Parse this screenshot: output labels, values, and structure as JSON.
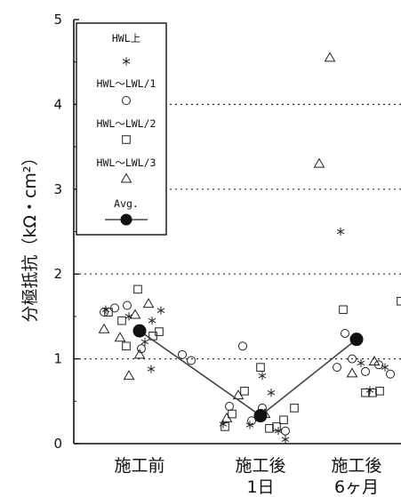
{
  "chart_data": {
    "type": "scatter",
    "ylabel": "分極抵抗（kΩ・cm²）",
    "ylim": [
      0,
      5
    ],
    "yticks": [
      "0",
      "1",
      "2",
      "3",
      "4",
      "5"
    ],
    "grid": "dotted horizontal at 1, 2, 3, 4",
    "legend_position": "top-left",
    "categories": [
      {
        "label": "施工前"
      },
      {
        "label": "施工後",
        "label2": "1日"
      },
      {
        "label": "施工後",
        "label2": "6ヶ月"
      }
    ],
    "series": [
      {
        "name": "HWL上",
        "marker": "star",
        "points": [
          {
            "c": 0,
            "dx": -0.38,
            "y": 1.58
          },
          {
            "c": 0,
            "dx": -0.12,
            "y": 1.5
          },
          {
            "c": 0,
            "dx": 0.14,
            "y": 1.45
          },
          {
            "c": 0,
            "dx": 0.24,
            "y": 1.57
          },
          {
            "c": 0,
            "dx": 0.06,
            "y": 1.2
          },
          {
            "c": 0,
            "dx": 0.13,
            "y": 0.88
          },
          {
            "c": 1,
            "dx": -0.42,
            "y": 0.23
          },
          {
            "c": 1,
            "dx": -0.12,
            "y": 0.22
          },
          {
            "c": 1,
            "dx": 0.02,
            "y": 0.8
          },
          {
            "c": 1,
            "dx": 0.12,
            "y": 0.6
          },
          {
            "c": 1,
            "dx": 0.2,
            "y": 0.15
          },
          {
            "c": 1,
            "dx": 0.28,
            "y": 0.05
          },
          {
            "c": 2,
            "dx": -0.18,
            "y": 2.5
          },
          {
            "c": 2,
            "dx": 0.05,
            "y": 0.95
          },
          {
            "c": 2,
            "dx": 0.15,
            "y": 0.63
          },
          {
            "c": 2,
            "dx": 0.32,
            "y": 0.9
          }
        ]
      },
      {
        "name": "HWL～LWL/1",
        "marker": "circle",
        "points": [
          {
            "c": 0,
            "dx": -0.4,
            "y": 1.55
          },
          {
            "c": 0,
            "dx": -0.28,
            "y": 1.6
          },
          {
            "c": 0,
            "dx": -0.14,
            "y": 1.63
          },
          {
            "c": 0,
            "dx": 0.02,
            "y": 1.12
          },
          {
            "c": 0,
            "dx": 0.48,
            "y": 1.05
          },
          {
            "c": 0,
            "dx": 0.58,
            "y": 0.98
          },
          {
            "c": 1,
            "dx": -0.35,
            "y": 0.44
          },
          {
            "c": 1,
            "dx": -0.2,
            "y": 1.15
          },
          {
            "c": 1,
            "dx": -0.1,
            "y": 0.27
          },
          {
            "c": 1,
            "dx": 0.02,
            "y": 0.42
          },
          {
            "c": 1,
            "dx": 0.28,
            "y": 0.15
          },
          {
            "c": 2,
            "dx": -0.22,
            "y": 0.9
          },
          {
            "c": 2,
            "dx": -0.13,
            "y": 1.3
          },
          {
            "c": 2,
            "dx": -0.05,
            "y": 1.0
          },
          {
            "c": 2,
            "dx": 0.1,
            "y": 0.85
          },
          {
            "c": 2,
            "dx": 0.25,
            "y": 0.93
          },
          {
            "c": 2,
            "dx": 0.38,
            "y": 0.82
          }
        ]
      },
      {
        "name": "HWL～LWL/2",
        "marker": "square",
        "points": [
          {
            "c": 0,
            "dx": -0.35,
            "y": 1.55
          },
          {
            "c": 0,
            "dx": -0.2,
            "y": 1.45
          },
          {
            "c": 0,
            "dx": -0.02,
            "y": 1.82
          },
          {
            "c": 0,
            "dx": 0.15,
            "y": 1.27
          },
          {
            "c": 0,
            "dx": 0.22,
            "y": 1.32
          },
          {
            "c": 0,
            "dx": -0.15,
            "y": 1.15
          },
          {
            "c": 1,
            "dx": -0.4,
            "y": 0.2
          },
          {
            "c": 1,
            "dx": -0.32,
            "y": 0.35
          },
          {
            "c": 1,
            "dx": -0.18,
            "y": 0.62
          },
          {
            "c": 1,
            "dx": 0.0,
            "y": 0.9
          },
          {
            "c": 1,
            "dx": 0.1,
            "y": 0.18
          },
          {
            "c": 1,
            "dx": 0.18,
            "y": 0.2
          },
          {
            "c": 1,
            "dx": 0.26,
            "y": 0.28
          },
          {
            "c": 1,
            "dx": 0.38,
            "y": 0.42
          },
          {
            "c": 2,
            "dx": -0.15,
            "y": 1.58
          },
          {
            "c": 2,
            "dx": 0.1,
            "y": 0.6
          },
          {
            "c": 2,
            "dx": 0.18,
            "y": 0.6
          },
          {
            "c": 2,
            "dx": 0.26,
            "y": 0.62
          },
          {
            "c": 2,
            "dx": 0.5,
            "y": 1.68
          },
          {
            "c": 2,
            "dx": 0.55,
            "y": 0.93
          }
        ]
      },
      {
        "name": "HWL～LWL/3",
        "marker": "triangle",
        "points": [
          {
            "c": 0,
            "dx": -0.4,
            "y": 1.35
          },
          {
            "c": 0,
            "dx": -0.22,
            "y": 1.25
          },
          {
            "c": 0,
            "dx": -0.12,
            "y": 0.8
          },
          {
            "c": 0,
            "dx": -0.05,
            "y": 1.52
          },
          {
            "c": 0,
            "dx": 0.1,
            "y": 1.65
          },
          {
            "c": 0,
            "dx": 0.0,
            "y": 1.05
          },
          {
            "c": 1,
            "dx": -0.38,
            "y": 0.3
          },
          {
            "c": 1,
            "dx": -0.25,
            "y": 0.57
          },
          {
            "c": 1,
            "dx": 0.05,
            "y": 0.35
          },
          {
            "c": 2,
            "dx": -0.3,
            "y": 4.55
          },
          {
            "c": 2,
            "dx": -0.42,
            "y": 3.3
          },
          {
            "c": 2,
            "dx": -0.05,
            "y": 0.83
          },
          {
            "c": 2,
            "dx": 0.2,
            "y": 0.97
          }
        ]
      }
    ],
    "average": {
      "name": "Avg.",
      "marker": "filled-circle-line",
      "values": [
        1.33,
        0.33,
        1.23
      ]
    }
  }
}
